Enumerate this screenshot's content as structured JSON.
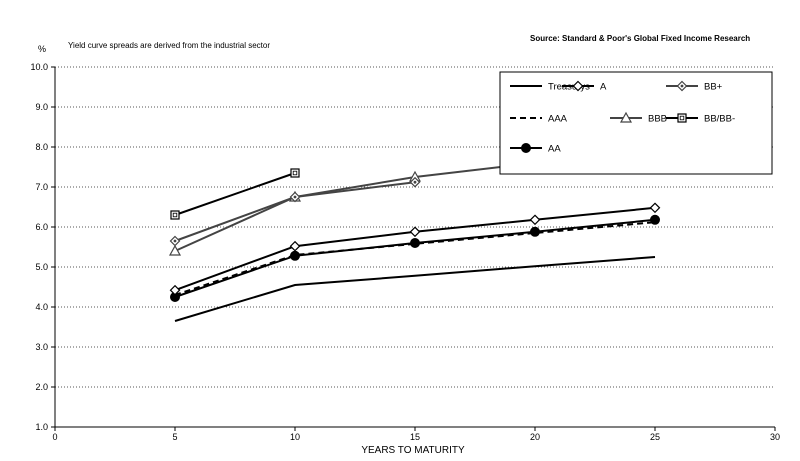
{
  "chart_data": {
    "type": "line",
    "title": "",
    "subtitle": "Yield curve spreads are derived from the industrial sector",
    "source": "Source: Standard & Poor's Global Fixed Income Research",
    "ylabel": "%",
    "xlabel": "YEARS TO MATURITY",
    "xlim": [
      0,
      30
    ],
    "ylim": [
      1.0,
      10.0
    ],
    "xticks": [
      "0",
      "5",
      "10",
      "15",
      "20",
      "25",
      "30"
    ],
    "yticks": [
      "1.0",
      "2.0",
      "3.0",
      "4.0",
      "5.0",
      "6.0",
      "7.0",
      "8.0",
      "9.0",
      "10.0"
    ],
    "grid": "horizontal dotted",
    "legend_position": "top-right",
    "series": [
      {
        "name": "Treasurys",
        "x": [
          5,
          10,
          15,
          20,
          25
        ],
        "y": [
          3.65,
          4.55,
          4.78,
          5.02,
          5.25
        ],
        "color": "#000000",
        "style": "solid",
        "marker": "none"
      },
      {
        "name": "AAA",
        "x": [
          5,
          10,
          15,
          20,
          25
        ],
        "y": [
          4.3,
          5.3,
          5.58,
          5.85,
          6.12
        ],
        "color": "#000000",
        "style": "dashed",
        "marker": "none"
      },
      {
        "name": "AA",
        "x": [
          5,
          10,
          15,
          20,
          25
        ],
        "y": [
          4.25,
          5.28,
          5.6,
          5.88,
          6.18
        ],
        "color": "#000000",
        "style": "solid",
        "marker": "filled-circle"
      },
      {
        "name": "A",
        "x": [
          5,
          10,
          15,
          20,
          25
        ],
        "y": [
          4.42,
          5.52,
          5.88,
          6.18,
          6.48
        ],
        "color": "#000000",
        "style": "solid",
        "marker": "diamond"
      },
      {
        "name": "BBB",
        "x": [
          5,
          10,
          15,
          20
        ],
        "y": [
          5.4,
          6.75,
          7.25,
          7.6
        ],
        "color": "#444444",
        "style": "solid",
        "marker": "triangle"
      },
      {
        "name": "BB+",
        "x": [
          5,
          10,
          15
        ],
        "y": [
          5.65,
          6.75,
          7.12
        ],
        "color": "#444444",
        "style": "solid",
        "marker": "diamond-dot"
      },
      {
        "name": "BB/BB-",
        "x": [
          5,
          10
        ],
        "y": [
          6.3,
          7.35
        ],
        "color": "#000000",
        "style": "solid",
        "marker": "square"
      }
    ]
  }
}
